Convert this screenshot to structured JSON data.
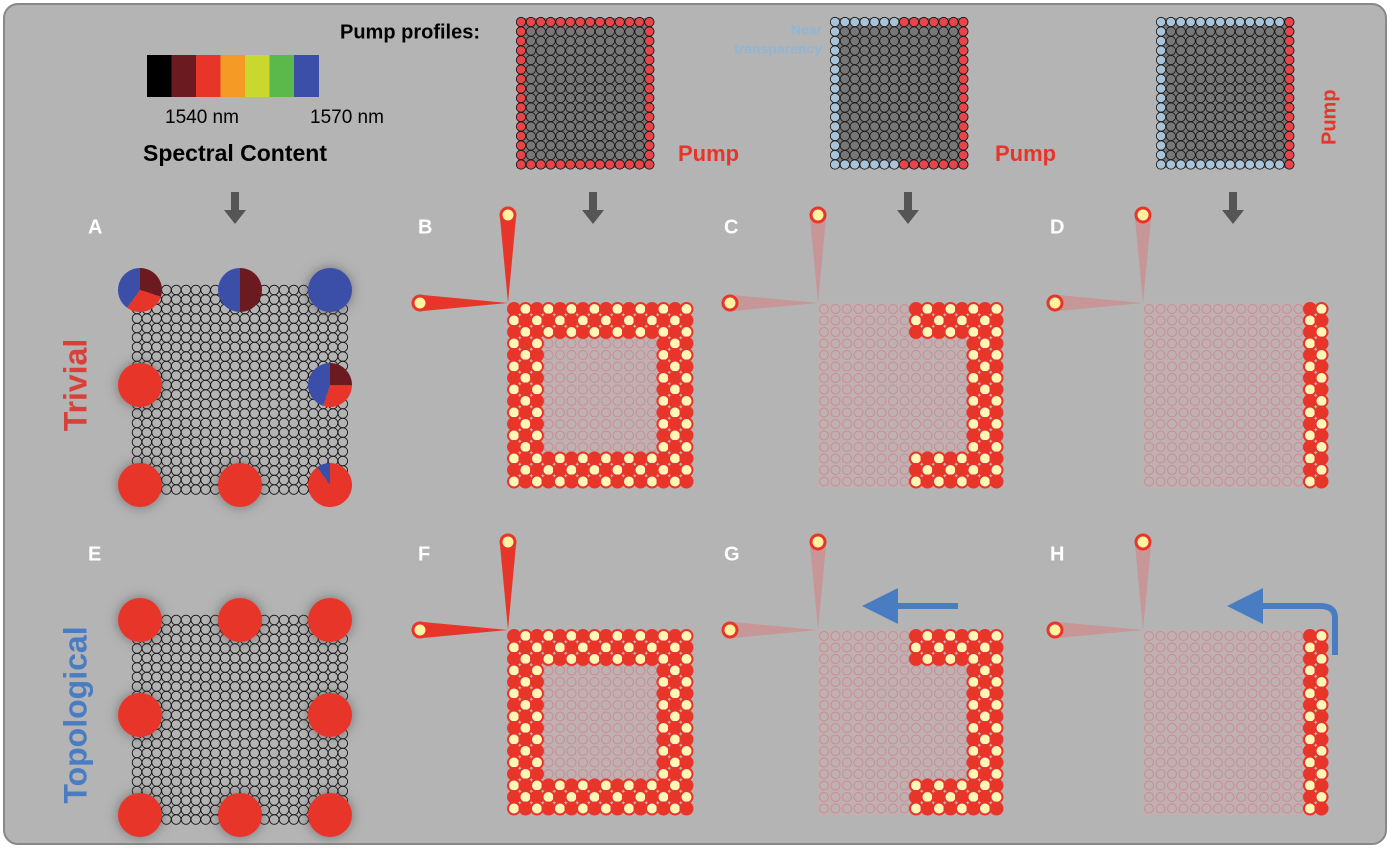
{
  "pump_profiles_label": "Pump profiles:",
  "spectral_legend": {
    "colors": [
      "#000000",
      "#6b1a1f",
      "#e8352a",
      "#f59a25",
      "#c8d82f",
      "#5bb84a",
      "#3b4fa8"
    ],
    "min_label": "1540 nm",
    "max_label": "1570 nm",
    "title": "Spectral Content"
  },
  "profiles": [
    {
      "pump_label": "Pump"
    },
    {
      "near_label": [
        "Near",
        "transparency"
      ],
      "pump_label": "Pump"
    },
    {
      "pump_label": "Pump"
    }
  ],
  "panels": [
    "A",
    "B",
    "C",
    "D",
    "E",
    "F",
    "G",
    "H"
  ],
  "rows": [
    "Trivial",
    "Topological"
  ],
  "spectral_pies": {
    "trivial": [
      {
        "slices": [
          {
            "color": "#6b1a1f",
            "value": 30
          },
          {
            "color": "#e8352a",
            "value": 30
          },
          {
            "color": "#3b4fa8",
            "value": 40
          }
        ]
      },
      {
        "slices": [
          {
            "color": "#6b1a1f",
            "value": 50
          },
          {
            "color": "#3b4fa8",
            "value": 50
          }
        ]
      },
      {
        "slices": [
          {
            "color": "#3b4fa8",
            "value": 100
          }
        ]
      },
      {
        "slices": [
          {
            "color": "#e8352a",
            "value": 100
          }
        ]
      },
      {
        "slices": [
          {
            "color": "#6b1a1f",
            "value": 25
          },
          {
            "color": "#e8352a",
            "value": 30
          },
          {
            "color": "#3b4fa8",
            "value": 45
          }
        ]
      },
      {
        "slices": [
          {
            "color": "#e8352a",
            "value": 100
          }
        ]
      },
      {
        "slices": [
          {
            "color": "#e8352a",
            "value": 100
          }
        ]
      },
      {
        "slices": [
          {
            "color": "#e8352a",
            "value": 90
          },
          {
            "color": "#3b4fa8",
            "value": 10
          }
        ]
      }
    ],
    "topological": [
      {
        "slices": [
          {
            "color": "#e8352a",
            "value": 100
          }
        ]
      },
      {
        "slices": [
          {
            "color": "#e8352a",
            "value": 100
          }
        ]
      },
      {
        "slices": [
          {
            "color": "#e8352a",
            "value": 100
          }
        ]
      },
      {
        "slices": [
          {
            "color": "#e8352a",
            "value": 100
          }
        ]
      },
      {
        "slices": [
          {
            "color": "#e8352a",
            "value": 100
          }
        ]
      },
      {
        "slices": [
          {
            "color": "#e8352a",
            "value": 100
          }
        ]
      },
      {
        "slices": [
          {
            "color": "#e8352a",
            "value": 100
          }
        ]
      },
      {
        "slices": [
          {
            "color": "#e8352a",
            "value": 100
          }
        ]
      }
    ]
  }
}
